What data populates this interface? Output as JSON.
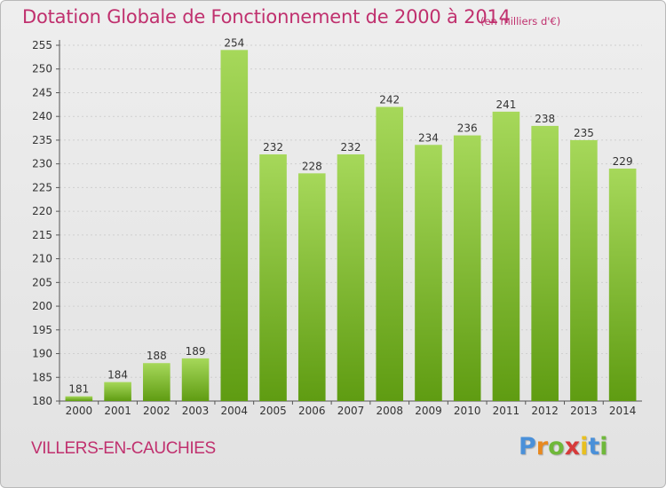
{
  "title": "Dotation Globale de Fonctionnement de 2000 à 2014",
  "subtitle": "(en milliers d'€)",
  "commune": "VILLERS-EN-CAUCHIES",
  "logo": {
    "letters": [
      "P",
      "r",
      "o",
      "x",
      "i",
      "t",
      "i"
    ],
    "colors": [
      "#4a90d9",
      "#e8891f",
      "#6fb83a",
      "#d63a3a",
      "#e8c020",
      "#4a90d9",
      "#6fb83a"
    ]
  },
  "colors": {
    "title": "#c0306e",
    "bar_light": "#a6d85a",
    "bar_dark": "#5f9c12",
    "grid": "#cfcfcf",
    "background": "#e6e6e6"
  },
  "chart_data": {
    "type": "bar",
    "title": "Dotation Globale de Fonctionnement de 2000 à 2014",
    "subtitle": "(en milliers d'€)",
    "categories": [
      "2000",
      "2001",
      "2002",
      "2003",
      "2004",
      "2005",
      "2006",
      "2007",
      "2008",
      "2009",
      "2010",
      "2011",
      "2012",
      "2013",
      "2014"
    ],
    "values": [
      181,
      184,
      188,
      189,
      254,
      232,
      228,
      232,
      242,
      234,
      236,
      241,
      238,
      235,
      229
    ],
    "ylim": [
      180,
      255
    ],
    "yticks": [
      180,
      185,
      190,
      195,
      200,
      205,
      210,
      215,
      220,
      225,
      230,
      235,
      240,
      245,
      250,
      255
    ],
    "grid": true,
    "xlabel": "",
    "ylabel": ""
  }
}
